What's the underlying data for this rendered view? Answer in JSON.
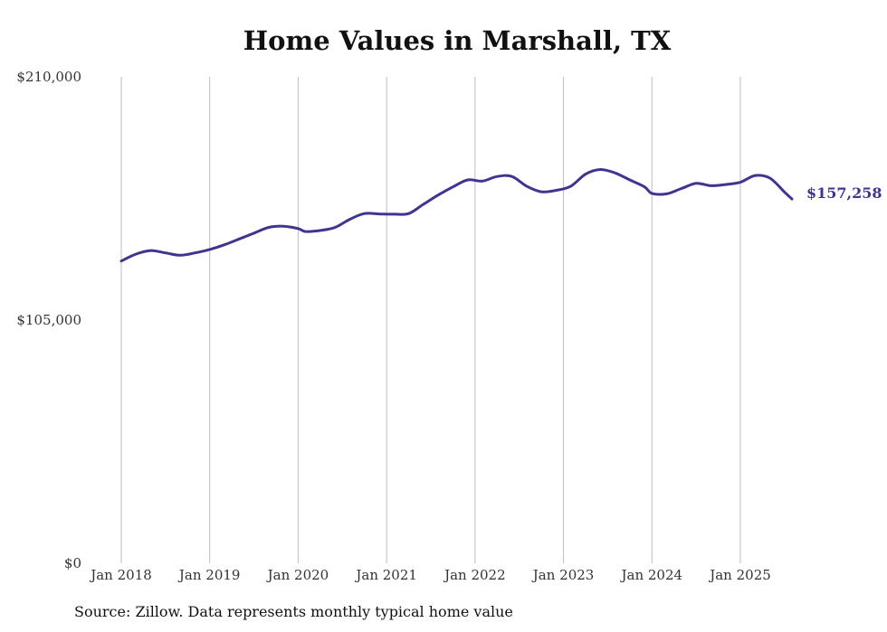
{
  "chart_data": {
    "type": "line",
    "title": "Home Values in Marshall, TX",
    "source_note": "Source: Zillow. Data represents monthly typical home value",
    "ylim": [
      0,
      210000
    ],
    "y_ticks": [
      0,
      105000,
      210000
    ],
    "y_tick_labels": [
      "$0",
      "$105,000",
      "$210,000"
    ],
    "x_ticks": [
      "2018-01",
      "2019-01",
      "2020-01",
      "2021-01",
      "2022-01",
      "2023-01",
      "2024-01",
      "2025-01"
    ],
    "x_tick_labels": [
      "Jan 2018",
      "Jan 2019",
      "Jan 2020",
      "Jan 2021",
      "Jan 2022",
      "Jan 2023",
      "Jan 2024",
      "Jan 2025"
    ],
    "grid": "vertical lines at yearly ticks",
    "line_color": "#3d3590",
    "end_label": "$157,258",
    "series": [
      {
        "x": [
          "2018-01",
          "2018-03",
          "2018-05",
          "2018-07",
          "2018-09",
          "2018-11",
          "2019-01",
          "2019-03",
          "2019-05",
          "2019-07",
          "2019-09",
          "2019-11",
          "2020-01",
          "2020-02",
          "2020-04",
          "2020-06",
          "2020-08",
          "2020-10",
          "2020-12",
          "2021-02",
          "2021-04",
          "2021-06",
          "2021-08",
          "2021-10",
          "2021-12",
          "2022-02",
          "2022-04",
          "2022-06",
          "2022-08",
          "2022-10",
          "2022-12",
          "2023-02",
          "2023-04",
          "2023-06",
          "2023-08",
          "2023-10",
          "2023-12",
          "2024-01",
          "2024-03",
          "2024-05",
          "2024-07",
          "2024-09",
          "2024-11",
          "2025-01",
          "2025-03",
          "2025-05",
          "2025-07",
          "2025-08"
        ],
        "y": [
          130500,
          133500,
          135000,
          134000,
          133000,
          134000,
          135500,
          137500,
          140000,
          142500,
          145000,
          145500,
          144500,
          143200,
          143700,
          145000,
          148500,
          151000,
          150800,
          150700,
          151000,
          155000,
          159000,
          162500,
          165500,
          165000,
          167000,
          167000,
          162800,
          160400,
          161000,
          162800,
          168000,
          170000,
          168500,
          165500,
          162500,
          159700,
          159500,
          161800,
          164000,
          163000,
          163500,
          164500,
          167400,
          166300,
          160200,
          157258
        ]
      }
    ]
  }
}
